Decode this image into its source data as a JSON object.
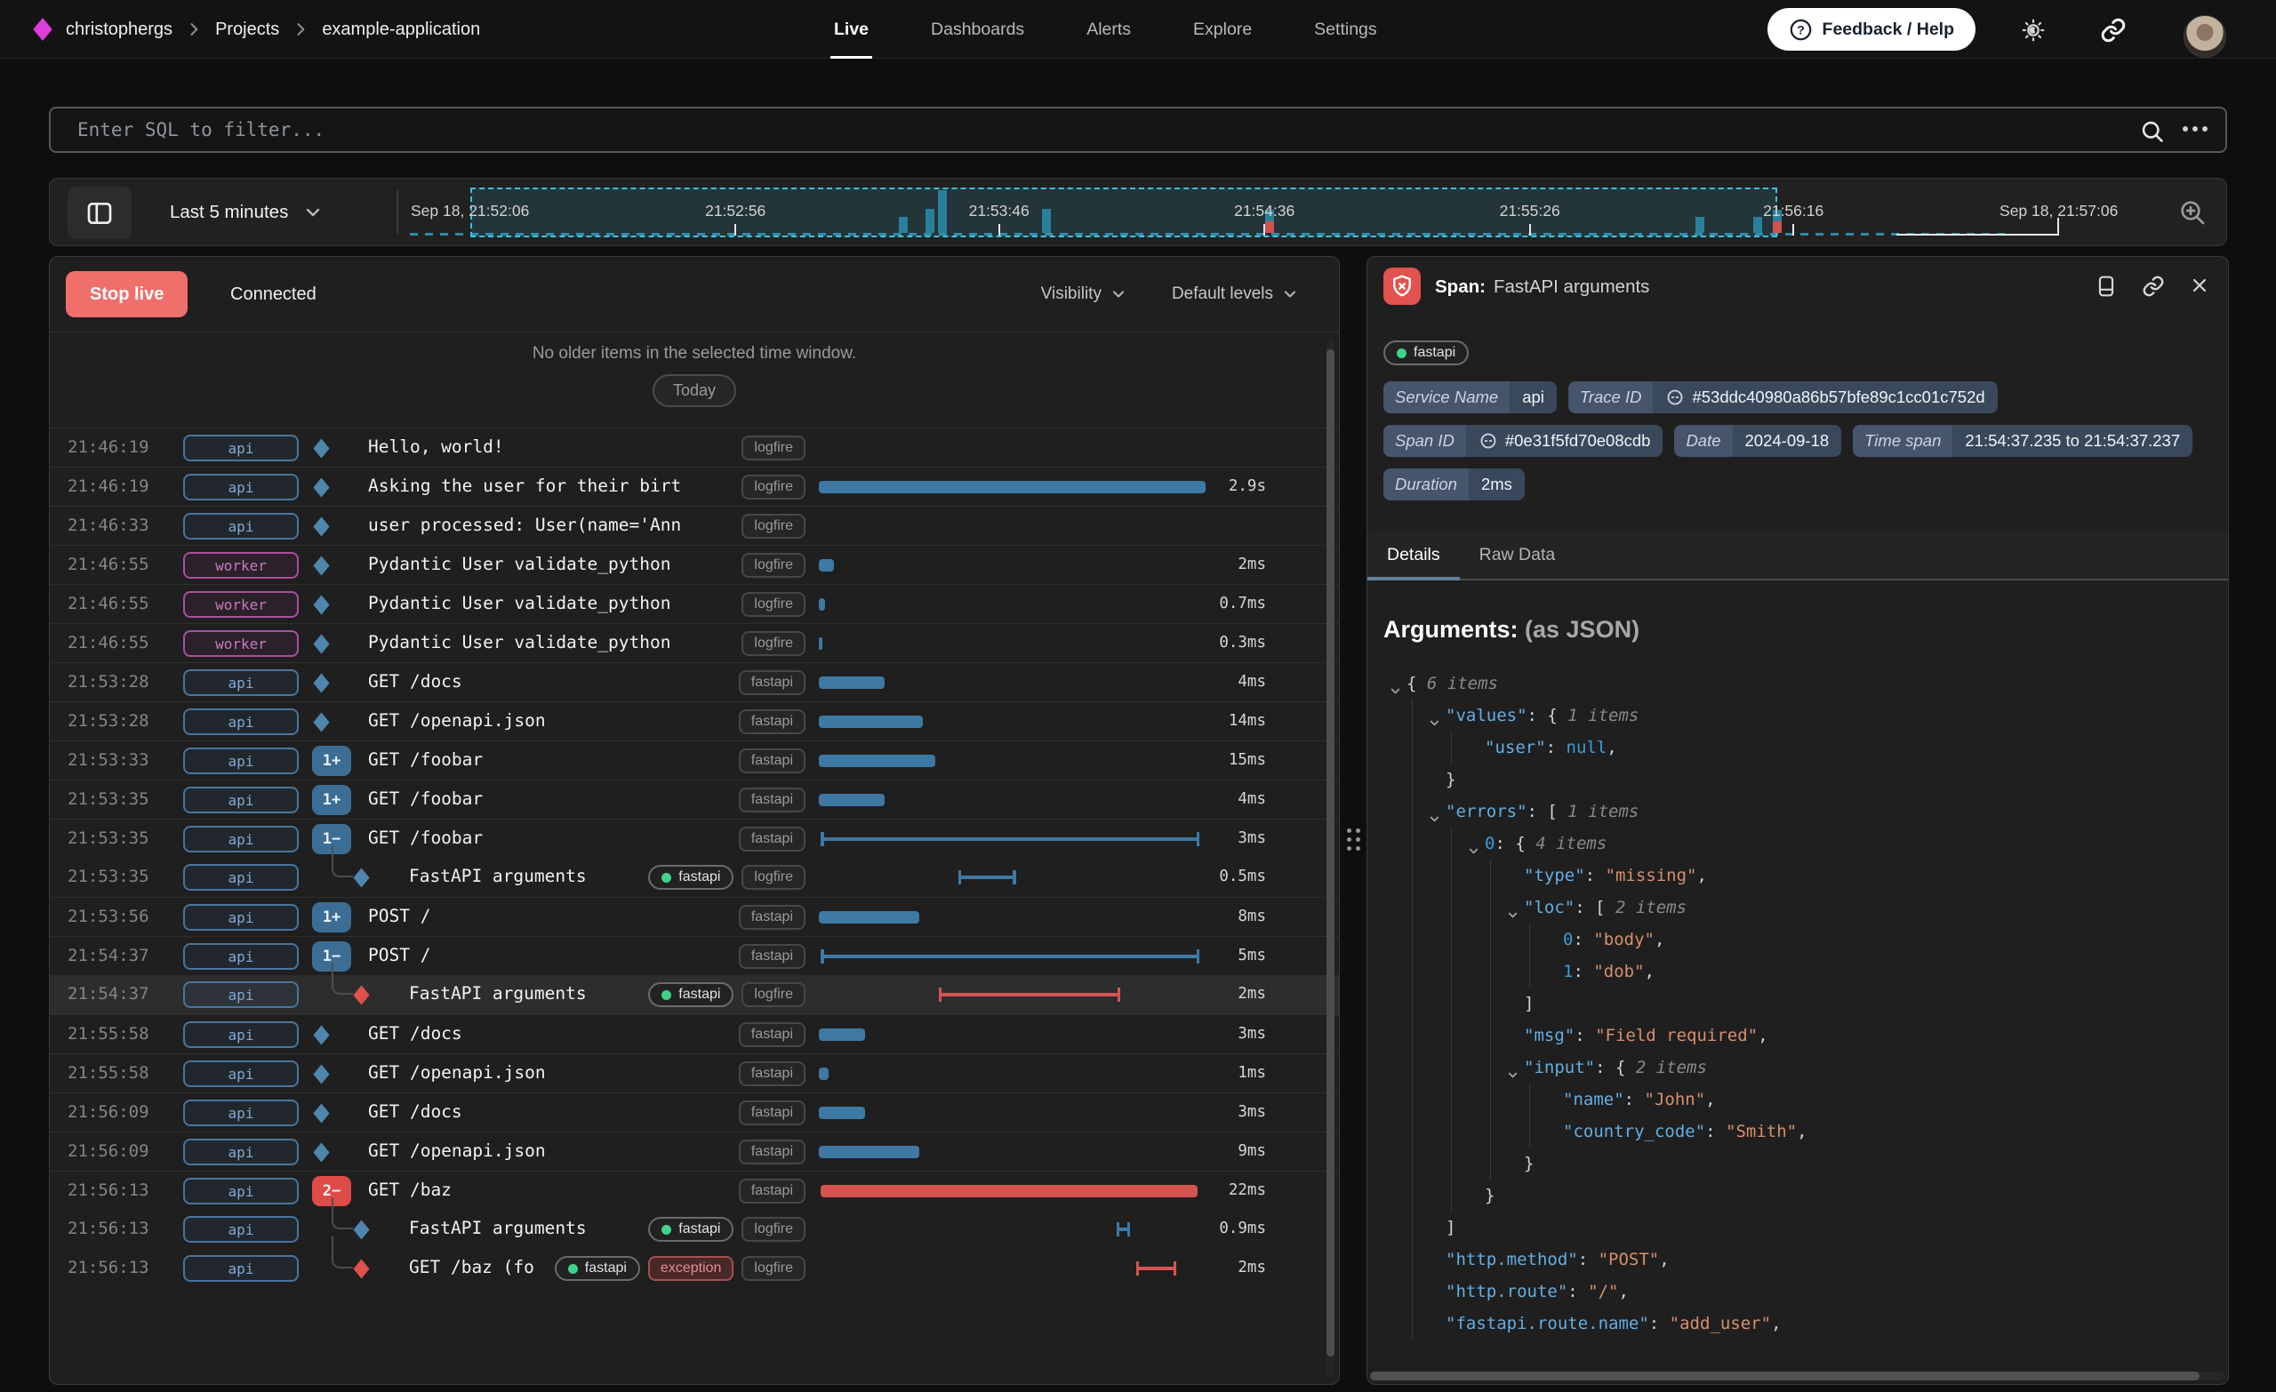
{
  "nav": {
    "logo_icon": "logfire-diamond-logo",
    "breadcrumb": [
      "christophergs",
      "Projects",
      "example-application"
    ],
    "tabs": [
      {
        "label": "Live",
        "active": true
      },
      {
        "label": "Dashboards",
        "active": false
      },
      {
        "label": "Alerts",
        "active": false
      },
      {
        "label": "Explore",
        "active": false
      },
      {
        "label": "Settings",
        "active": false
      }
    ],
    "feedback_label": "Feedback / Help",
    "right_icons": [
      "help-icon",
      "theme-toggle-icon",
      "share-link-icon",
      "avatar"
    ]
  },
  "filter": {
    "placeholder": "Enter SQL to filter...",
    "icons": [
      "search-icon",
      "more-options-icon"
    ]
  },
  "timebar": {
    "range_label": "Last 5 minutes",
    "ticks": [
      {
        "label": "Sep 18, 21:52:06",
        "pct": 3.4,
        "mark": false
      },
      {
        "label": "21:52:56",
        "pct": 18.4,
        "mark": true
      },
      {
        "label": "21:53:46",
        "pct": 33.3,
        "mark": true
      },
      {
        "label": "21:54:36",
        "pct": 48.3,
        "mark": true
      },
      {
        "label": "21:55:26",
        "pct": 63.3,
        "mark": true
      },
      {
        "label": "21:56:16",
        "pct": 78.2,
        "mark": true
      },
      {
        "label": "Sep 18, 21:57:06",
        "pct": 93.2,
        "mark": false
      }
    ],
    "bars": [
      {
        "pct": 27.9,
        "h": 18,
        "err": false
      },
      {
        "pct": 29.4,
        "h": 27,
        "err": false
      },
      {
        "pct": 30.1,
        "h": 48,
        "err": false
      },
      {
        "pct": 36.0,
        "h": 27,
        "err": false
      },
      {
        "pct": 48.6,
        "h": 13,
        "err": true
      },
      {
        "pct": 72.9,
        "h": 18,
        "err": false
      },
      {
        "pct": 76.2,
        "h": 18,
        "err": false
      },
      {
        "pct": 77.3,
        "h": 13,
        "err": true
      }
    ],
    "selection": {
      "start_pct": 3.4,
      "end_pct": 77.3
    },
    "colors": {
      "bar_teal": "#2a7f9c",
      "bar_red": "#d0514d",
      "selection_border": "#3fc1dd"
    }
  },
  "live": {
    "stop_label": "Stop live",
    "status": "Connected",
    "visibility_label": "Visibility",
    "default_levels_label": "Default levels",
    "empty_message": "No older items in the selected time window.",
    "today_label": "Today",
    "rows": [
      {
        "time": "21:46:19",
        "tag": "api",
        "kind": "span",
        "lvl": "info",
        "msg": "Hello, world!",
        "scopes": [
          "logfire"
        ],
        "bar": null,
        "dur": ""
      },
      {
        "time": "21:46:19",
        "tag": "api",
        "kind": "span",
        "lvl": "info",
        "msg": "Asking the user for their birt",
        "scopes": [
          "logfire"
        ],
        "bar": {
          "l": 0,
          "w": 100,
          "style": "solid",
          "err": false
        },
        "dur": "2.9s"
      },
      {
        "time": "21:46:33",
        "tag": "api",
        "kind": "span",
        "lvl": "info",
        "msg": "user processed: User(name='Ann",
        "scopes": [
          "logfire"
        ],
        "bar": null,
        "dur": ""
      },
      {
        "time": "21:46:55",
        "tag": "worker",
        "kind": "span",
        "lvl": "info",
        "msg": "Pydantic User validate_python",
        "scopes": [
          "logfire"
        ],
        "bar": {
          "l": 0,
          "w": 4,
          "style": "solid",
          "err": false
        },
        "dur": "2ms"
      },
      {
        "time": "21:46:55",
        "tag": "worker",
        "kind": "span",
        "lvl": "info",
        "msg": "Pydantic User validate_python",
        "scopes": [
          "logfire"
        ],
        "bar": {
          "l": 0,
          "w": 1.5,
          "style": "solid",
          "err": false
        },
        "dur": "0.7ms"
      },
      {
        "time": "21:46:55",
        "tag": "worker",
        "kind": "span",
        "lvl": "info",
        "msg": "Pydantic User validate_python",
        "scopes": [
          "logfire"
        ],
        "bar": {
          "l": 0,
          "w": 1,
          "style": "solid",
          "err": false
        },
        "dur": "0.3ms"
      },
      {
        "time": "21:53:28",
        "tag": "api",
        "kind": "span",
        "lvl": "info",
        "msg": "GET /docs",
        "scopes": [
          "fastapi"
        ],
        "bar": {
          "l": 0,
          "w": 17,
          "style": "solid",
          "err": false
        },
        "dur": "4ms"
      },
      {
        "time": "21:53:28",
        "tag": "api",
        "kind": "span",
        "lvl": "info",
        "msg": "GET /openapi.json",
        "scopes": [
          "fastapi"
        ],
        "bar": {
          "l": 0,
          "w": 27,
          "style": "solid",
          "err": false
        },
        "dur": "14ms"
      },
      {
        "time": "21:53:33",
        "tag": "api",
        "kind": "badge",
        "badge": "1+",
        "lvl": "info",
        "msg": "GET /foobar",
        "scopes": [
          "fastapi"
        ],
        "bar": {
          "l": 0,
          "w": 30,
          "style": "solid",
          "err": false
        },
        "dur": "15ms"
      },
      {
        "time": "21:53:35",
        "tag": "api",
        "kind": "badge",
        "badge": "1+",
        "lvl": "info",
        "msg": "GET /foobar",
        "scopes": [
          "fastapi"
        ],
        "bar": {
          "l": 0,
          "w": 17,
          "style": "solid",
          "err": false
        },
        "dur": "4ms"
      },
      {
        "time": "21:53:35",
        "tag": "api",
        "kind": "badge",
        "badge": "1−",
        "lvl": "info",
        "msg": "GET /foobar",
        "scopes": [
          "fastapi"
        ],
        "bar": {
          "l": 0.5,
          "w": 98,
          "style": "ibeam",
          "err": false
        },
        "dur": "3ms"
      },
      {
        "time": "21:53:35",
        "tag": "api",
        "kind": "nested",
        "lvl": "info",
        "msg": "FastAPI arguments",
        "scopes": [
          "fastapi-dot",
          "logfire"
        ],
        "bar": {
          "l": 36,
          "w": 15,
          "style": "ibeam",
          "err": false
        },
        "dur": "0.5ms"
      },
      {
        "time": "21:53:56",
        "tag": "api",
        "kind": "badge",
        "badge": "1+",
        "lvl": "info",
        "msg": "POST /",
        "scopes": [
          "fastapi"
        ],
        "bar": {
          "l": 0,
          "w": 26,
          "style": "solid",
          "err": false
        },
        "dur": "8ms"
      },
      {
        "time": "21:54:37",
        "tag": "api",
        "kind": "badge",
        "badge": "1−",
        "lvl": "info",
        "msg": "POST /",
        "scopes": [
          "fastapi"
        ],
        "bar": {
          "l": 0.5,
          "w": 98,
          "style": "ibeam",
          "err": false
        },
        "dur": "5ms"
      },
      {
        "time": "21:54:37",
        "tag": "api",
        "kind": "nested",
        "lvl": "error",
        "msg": "FastAPI arguments",
        "scopes": [
          "fastapi-dot",
          "logfire"
        ],
        "bar": {
          "l": 31,
          "w": 47,
          "style": "ibeam",
          "err": true
        },
        "dur": "2ms",
        "selected": true
      },
      {
        "time": "21:55:58",
        "tag": "api",
        "kind": "span",
        "lvl": "info",
        "msg": "GET /docs",
        "scopes": [
          "fastapi"
        ],
        "bar": {
          "l": 0,
          "w": 12,
          "style": "solid",
          "err": false
        },
        "dur": "3ms"
      },
      {
        "time": "21:55:58",
        "tag": "api",
        "kind": "span",
        "lvl": "info",
        "msg": "GET /openapi.json",
        "scopes": [
          "fastapi"
        ],
        "bar": {
          "l": 0,
          "w": 2.5,
          "style": "solid",
          "err": false
        },
        "dur": "1ms"
      },
      {
        "time": "21:56:09",
        "tag": "api",
        "kind": "span",
        "lvl": "info",
        "msg": "GET /docs",
        "scopes": [
          "fastapi"
        ],
        "bar": {
          "l": 0,
          "w": 12,
          "style": "solid",
          "err": false
        },
        "dur": "3ms"
      },
      {
        "time": "21:56:09",
        "tag": "api",
        "kind": "span",
        "lvl": "info",
        "msg": "GET /openapi.json",
        "scopes": [
          "fastapi"
        ],
        "bar": {
          "l": 0,
          "w": 26,
          "style": "solid",
          "err": false
        },
        "dur": "9ms"
      },
      {
        "time": "21:56:13",
        "tag": "api",
        "kind": "badge",
        "badge": "2−",
        "lvl": "error",
        "msg": "GET /baz",
        "scopes": [
          "fastapi"
        ],
        "bar": {
          "l": 0.5,
          "w": 97.5,
          "style": "solid",
          "err": true
        },
        "dur": "22ms"
      },
      {
        "time": "21:56:13",
        "tag": "api",
        "kind": "nested",
        "lvl": "info",
        "msg": "FastAPI arguments",
        "scopes": [
          "fastapi-dot",
          "logfire"
        ],
        "bar": {
          "l": 77,
          "w": 3.5,
          "style": "ibeam",
          "err": false
        },
        "dur": "0.9ms"
      },
      {
        "time": "21:56:13",
        "tag": "api",
        "kind": "nested",
        "lvl": "error",
        "msg": "GET /baz (fo",
        "scopes": [
          "fastapi-dot",
          "exception",
          "logfire"
        ],
        "bar": {
          "l": 82,
          "w": 10.5,
          "style": "ibeam",
          "err": true
        },
        "dur": "2ms"
      }
    ]
  },
  "detail": {
    "title_prefix": "Span:",
    "title": "FastAPI arguments",
    "service_tag": "fastapi",
    "header_icons": [
      "error-shield-icon",
      "window-icon",
      "link-icon",
      "close-icon"
    ],
    "chips": [
      {
        "label": "Service Name",
        "value": "api",
        "link": false
      },
      {
        "label": "Trace ID",
        "value": "#53ddc40980a86b57bfe89c1cc01c752d",
        "link": true
      },
      {
        "label": "Span ID",
        "value": "#0e31f5fd70e08cdb",
        "link": true
      },
      {
        "label": "Date",
        "value": "2024-09-18",
        "link": false
      },
      {
        "label": "Time span",
        "value": "21:54:37.235 to 21:54:37.237",
        "link": false
      },
      {
        "label": "Duration",
        "value": "2ms",
        "link": false
      }
    ],
    "tabs": [
      {
        "label": "Details",
        "active": true
      },
      {
        "label": "Raw Data",
        "active": false
      }
    ],
    "heading": "Arguments:",
    "heading_suffix": " (as JSON)",
    "json": [
      {
        "i": 0,
        "c": 1,
        "s": [
          [
            "jp",
            "{ "
          ],
          [
            "jit",
            "6 items"
          ]
        ]
      },
      {
        "i": 1,
        "c": 1,
        "s": [
          [
            "jk",
            "\"values\""
          ],
          [
            "jp",
            ": { "
          ],
          [
            "jit",
            "1 items"
          ]
        ]
      },
      {
        "i": 2,
        "c": 0,
        "s": [
          [
            "jk",
            "\"user\""
          ],
          [
            "jp",
            ": "
          ],
          [
            "jn",
            "null"
          ],
          [
            "jp",
            ","
          ]
        ]
      },
      {
        "i": 1,
        "c": 0,
        "s": [
          [
            "jp",
            "}"
          ]
        ]
      },
      {
        "i": 1,
        "c": 1,
        "s": [
          [
            "jk",
            "\"errors\""
          ],
          [
            "jp",
            ": [ "
          ],
          [
            "jit",
            "1 items"
          ]
        ]
      },
      {
        "i": 2,
        "c": 1,
        "s": [
          [
            "jn",
            "0"
          ],
          [
            "jp",
            ": { "
          ],
          [
            "jit",
            "4 items"
          ]
        ]
      },
      {
        "i": 3,
        "c": 0,
        "s": [
          [
            "jk",
            "\"type\""
          ],
          [
            "jp",
            ": "
          ],
          [
            "js",
            "\"missing\""
          ],
          [
            "jp",
            ","
          ]
        ]
      },
      {
        "i": 3,
        "c": 1,
        "s": [
          [
            "jk",
            "\"loc\""
          ],
          [
            "jp",
            ": [ "
          ],
          [
            "jit",
            "2 items"
          ]
        ]
      },
      {
        "i": 4,
        "c": 0,
        "s": [
          [
            "jn",
            "0"
          ],
          [
            "jp",
            ": "
          ],
          [
            "js",
            "\"body\""
          ],
          [
            "jp",
            ","
          ]
        ]
      },
      {
        "i": 4,
        "c": 0,
        "s": [
          [
            "jn",
            "1"
          ],
          [
            "jp",
            ": "
          ],
          [
            "js",
            "\"dob\""
          ],
          [
            "jp",
            ","
          ]
        ]
      },
      {
        "i": 3,
        "c": 0,
        "s": [
          [
            "jp",
            "]"
          ]
        ]
      },
      {
        "i": 3,
        "c": 0,
        "s": [
          [
            "jk",
            "\"msg\""
          ],
          [
            "jp",
            ": "
          ],
          [
            "js",
            "\"Field required\""
          ],
          [
            "jp",
            ","
          ]
        ]
      },
      {
        "i": 3,
        "c": 1,
        "s": [
          [
            "jk",
            "\"input\""
          ],
          [
            "jp",
            ": { "
          ],
          [
            "jit",
            "2 items"
          ]
        ]
      },
      {
        "i": 4,
        "c": 0,
        "s": [
          [
            "jk",
            "\"name\""
          ],
          [
            "jp",
            ": "
          ],
          [
            "js",
            "\"John\""
          ],
          [
            "jp",
            ","
          ]
        ]
      },
      {
        "i": 4,
        "c": 0,
        "s": [
          [
            "jk",
            "\"country_code\""
          ],
          [
            "jp",
            ": "
          ],
          [
            "js",
            "\"Smith\""
          ],
          [
            "jp",
            ","
          ]
        ]
      },
      {
        "i": 3,
        "c": 0,
        "s": [
          [
            "jp",
            "}"
          ]
        ]
      },
      {
        "i": 2,
        "c": 0,
        "s": [
          [
            "jp",
            "}"
          ]
        ]
      },
      {
        "i": 1,
        "c": 0,
        "s": [
          [
            "jp",
            "]"
          ]
        ]
      },
      {
        "i": 1,
        "c": 0,
        "s": [
          [
            "jk",
            "\"http.method\""
          ],
          [
            "jp",
            ": "
          ],
          [
            "js",
            "\"POST\""
          ],
          [
            "jp",
            ","
          ]
        ]
      },
      {
        "i": 1,
        "c": 0,
        "s": [
          [
            "jk",
            "\"http.route\""
          ],
          [
            "jp",
            ": "
          ],
          [
            "js",
            "\"/\""
          ],
          [
            "jp",
            ","
          ]
        ]
      },
      {
        "i": 1,
        "c": 0,
        "s": [
          [
            "jk",
            "\"fastapi.route.name\""
          ],
          [
            "jp",
            ": "
          ],
          [
            "js",
            "\"add_user\""
          ],
          [
            "jp",
            ","
          ]
        ]
      }
    ]
  },
  "colors": {
    "accent_cyan": "#3fc1dd",
    "bar_blue": "#3e79a4",
    "bar_red": "#d65450",
    "tag_api": "#7fa9d4",
    "tag_worker": "#cb79c0",
    "green_dot": "#3fd387",
    "stop_live_bg": "#ef6f6b",
    "error_icon_bg": "#e2524e",
    "chip_bg": "#3a485c",
    "json_key": "#64aee2",
    "json_string": "#d68f6d",
    "json_number": "#3f9bd8"
  }
}
